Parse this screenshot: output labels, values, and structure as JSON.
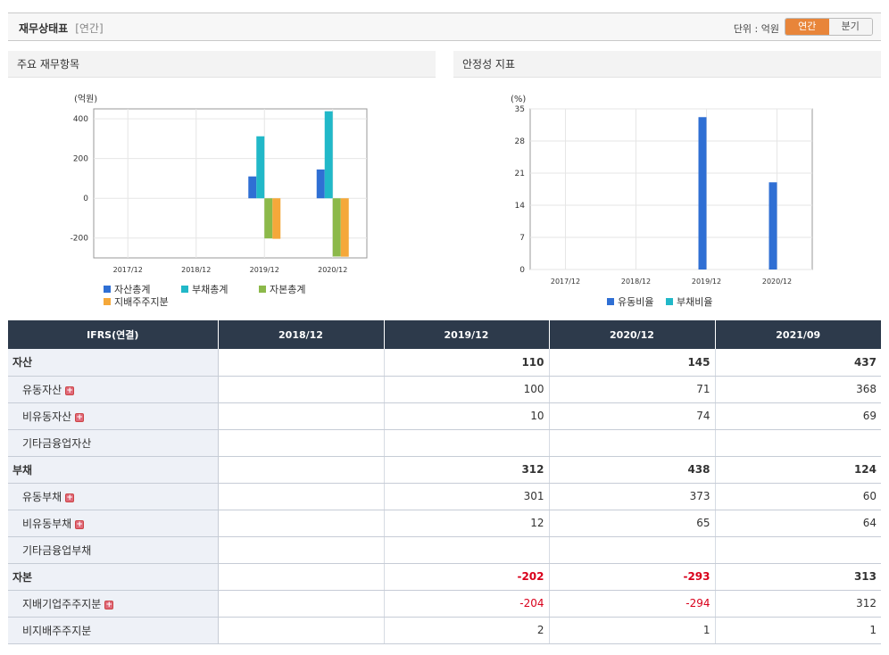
{
  "header": {
    "title": "재무상태표",
    "subtitle": "[연간]",
    "unit_label": "단위 : 억원",
    "tab_annual": "연간",
    "tab_quarter": "분기"
  },
  "left_panel": {
    "title": "주요 재무항목"
  },
  "right_panel": {
    "title": "안정성 지표"
  },
  "chart_data": [
    {
      "type": "bar",
      "title": "",
      "ylabel": "(억원)",
      "categories": [
        "2017/12",
        "2018/12",
        "2019/12",
        "2020/12"
      ],
      "ylim": [
        -300,
        450
      ],
      "yticks": [
        -200,
        0,
        200,
        400
      ],
      "series": [
        {
          "name": "자산총계",
          "color": "#2f6fd4",
          "values": [
            null,
            null,
            110,
            145
          ]
        },
        {
          "name": "부채총계",
          "color": "#21b8c8",
          "values": [
            null,
            null,
            312,
            438
          ]
        },
        {
          "name": "자본총계",
          "color": "#8cb94a",
          "values": [
            null,
            null,
            -202,
            -293
          ]
        },
        {
          "name": "지배주주지분",
          "color": "#f5a83a",
          "values": [
            null,
            null,
            -204,
            -294
          ]
        }
      ]
    },
    {
      "type": "bar",
      "title": "",
      "ylabel": "(%)",
      "categories": [
        "2017/12",
        "2018/12",
        "2019/12",
        "2020/12"
      ],
      "ylim": [
        0,
        35
      ],
      "yticks": [
        0,
        7,
        14,
        21,
        28,
        35
      ],
      "series": [
        {
          "name": "유동비율",
          "color": "#2f6fd4",
          "values": [
            null,
            null,
            33.2,
            19.0
          ]
        },
        {
          "name": "부채비율",
          "color": "#21b8c8",
          "values": [
            null,
            null,
            null,
            null
          ]
        }
      ]
    }
  ],
  "table": {
    "corner": "IFRS(연결)",
    "columns": [
      "2018/12",
      "2019/12",
      "2020/12",
      "2021/09"
    ],
    "rows": [
      {
        "label": "자산",
        "level": 1,
        "plus": false,
        "values": [
          "",
          "110",
          "145",
          "437"
        ]
      },
      {
        "label": "유동자산",
        "level": 2,
        "plus": true,
        "values": [
          "",
          "100",
          "71",
          "368"
        ]
      },
      {
        "label": "비유동자산",
        "level": 2,
        "plus": true,
        "values": [
          "",
          "10",
          "74",
          "69"
        ]
      },
      {
        "label": "기타금융업자산",
        "level": 2,
        "plus": false,
        "values": [
          "",
          "",
          "",
          ""
        ]
      },
      {
        "label": "부채",
        "level": 1,
        "plus": false,
        "values": [
          "",
          "312",
          "438",
          "124"
        ]
      },
      {
        "label": "유동부채",
        "level": 2,
        "plus": true,
        "values": [
          "",
          "301",
          "373",
          "60"
        ]
      },
      {
        "label": "비유동부채",
        "level": 2,
        "plus": true,
        "values": [
          "",
          "12",
          "65",
          "64"
        ]
      },
      {
        "label": "기타금융업부채",
        "level": 2,
        "plus": false,
        "values": [
          "",
          "",
          "",
          ""
        ]
      },
      {
        "label": "자본",
        "level": 1,
        "plus": false,
        "values": [
          "",
          "-202",
          "-293",
          "313"
        ]
      },
      {
        "label": "지배기업주주지분",
        "level": 2,
        "plus": true,
        "values": [
          "",
          "-204",
          "-294",
          "312"
        ]
      },
      {
        "label": "비지배주주지분",
        "level": 2,
        "plus": false,
        "values": [
          "",
          "2",
          "1",
          "1"
        ]
      }
    ]
  }
}
